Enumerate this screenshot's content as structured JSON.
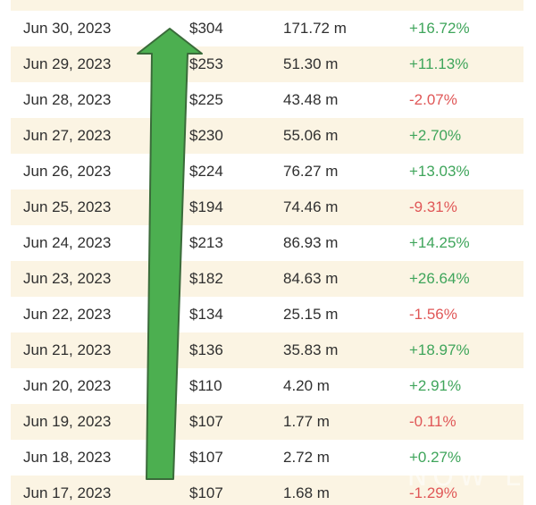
{
  "table": {
    "rows": [
      {
        "date": "Jun 30, 2023",
        "price": "$304",
        "volume": "171.72 m",
        "change": "+16.72%",
        "dir": "pos"
      },
      {
        "date": "Jun 29, 2023",
        "price": "$253",
        "volume": "51.30 m",
        "change": "+11.13%",
        "dir": "pos"
      },
      {
        "date": "Jun 28, 2023",
        "price": "$225",
        "volume": "43.48 m",
        "change": "-2.07%",
        "dir": "neg"
      },
      {
        "date": "Jun 27, 2023",
        "price": "$230",
        "volume": "55.06 m",
        "change": "+2.70%",
        "dir": "pos"
      },
      {
        "date": "Jun 26, 2023",
        "price": "$224",
        "volume": "76.27 m",
        "change": "+13.03%",
        "dir": "pos"
      },
      {
        "date": "Jun 25, 2023",
        "price": "$194",
        "volume": "74.46 m",
        "change": "-9.31%",
        "dir": "neg"
      },
      {
        "date": "Jun 24, 2023",
        "price": "$213",
        "volume": "86.93 m",
        "change": "+14.25%",
        "dir": "pos"
      },
      {
        "date": "Jun 23, 2023",
        "price": "$182",
        "volume": "84.63 m",
        "change": "+26.64%",
        "dir": "pos"
      },
      {
        "date": "Jun 22, 2023",
        "price": "$134",
        "volume": "25.15 m",
        "change": "-1.56%",
        "dir": "neg"
      },
      {
        "date": "Jun 21, 2023",
        "price": "$136",
        "volume": "35.83 m",
        "change": "+18.97%",
        "dir": "pos"
      },
      {
        "date": "Jun 20, 2023",
        "price": "$110",
        "volume": "4.20 m",
        "change": "+2.91%",
        "dir": "pos"
      },
      {
        "date": "Jun 19, 2023",
        "price": "$107",
        "volume": "1.77 m",
        "change": "-0.11%",
        "dir": "neg"
      },
      {
        "date": "Jun 18, 2023",
        "price": "$107",
        "volume": "2.72 m",
        "change": "+0.27%",
        "dir": "pos"
      },
      {
        "date": "Jun 17, 2023",
        "price": "$107",
        "volume": "1.68 m",
        "change": "-1.29%",
        "dir": "neg"
      }
    ]
  },
  "colors": {
    "positive": "#3fa55b",
    "negative": "#e05757",
    "stripe": "#fbf4e3",
    "arrow": "#4caf50"
  },
  "overlay": {
    "arrow_icon": "up-arrow-icon",
    "watermark": "NOW E"
  }
}
